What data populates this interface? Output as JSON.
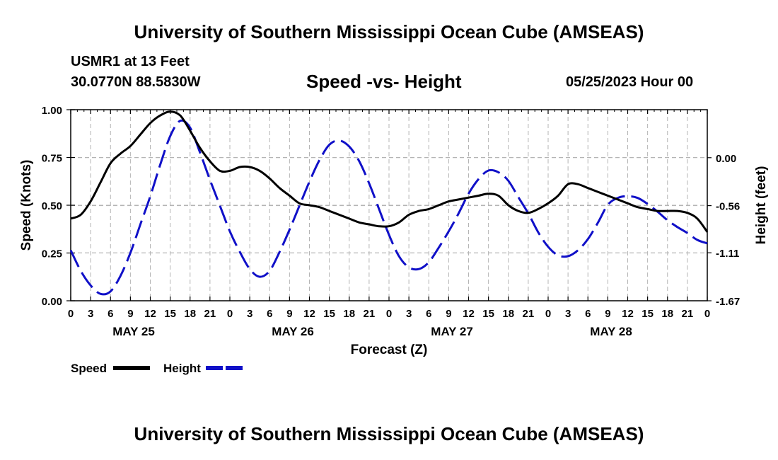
{
  "header": {
    "title": "University of Southern Mississippi Ocean Cube (AMSEAS)",
    "station": "USMR1 at 13 Feet",
    "coords": "30.0770N  88.5830W",
    "chart_title": "Speed -vs- Height",
    "datetime": "05/25/2023 Hour 00"
  },
  "footer": {
    "title": "University of Southern Mississippi Ocean Cube (AMSEAS)"
  },
  "colors": {
    "speed": "#000000",
    "height": "#1010c8",
    "grid": "#b4b4b4"
  },
  "chart_data": {
    "type": "line",
    "title": "Speed -vs- Height",
    "xlabel": "Forecast (Z)",
    "ylabel": "Speed (Knots)",
    "y2label": "Height (feet)",
    "xlim": [
      0,
      96
    ],
    "ylim": [
      0,
      1
    ],
    "y2lim": [
      -1.67,
      0.56
    ],
    "x_tick_values": [
      0,
      3,
      6,
      9,
      12,
      15,
      18,
      21,
      24,
      27,
      30,
      33,
      36,
      39,
      42,
      45,
      48,
      51,
      54,
      57,
      60,
      63,
      66,
      69,
      72,
      75,
      78,
      81,
      84,
      87,
      90,
      93,
      96
    ],
    "x_tick_labels": [
      "0",
      "3",
      "6",
      "9",
      "12",
      "15",
      "18",
      "21",
      "0",
      "3",
      "6",
      "9",
      "12",
      "15",
      "18",
      "21",
      "0",
      "3",
      "6",
      "9",
      "12",
      "15",
      "18",
      "21",
      "0",
      "3",
      "6",
      "9",
      "12",
      "15",
      "18",
      "21",
      "0"
    ],
    "day_labels": [
      {
        "label": "MAY 25",
        "x": 9.5
      },
      {
        "label": "MAY 26",
        "x": 33.5
      },
      {
        "label": "MAY 27",
        "x": 57.5
      },
      {
        "label": "MAY 28",
        "x": 81.5
      }
    ],
    "y_tick_values": [
      0,
      0.25,
      0.5,
      0.75,
      1.0
    ],
    "y_tick_labels": [
      "0.00",
      "0.25",
      "0.50",
      "0.75",
      "1.00"
    ],
    "y2_tick_values": [
      -1.67,
      -1.11,
      -0.56,
      0.0
    ],
    "y2_tick_labels": [
      "-1.67",
      "-1.11",
      "-0.56",
      "0.00"
    ],
    "legend": [
      {
        "label": "Speed",
        "style": "solid"
      },
      {
        "label": "Height",
        "style": "dashed"
      }
    ],
    "series": [
      {
        "name": "Speed",
        "axis": "left",
        "style": "solid",
        "x": [
          0,
          1.5,
          3,
          4.5,
          6,
          7.5,
          9,
          10.5,
          12,
          13.5,
          15,
          16.5,
          18,
          19.5,
          21,
          22.5,
          24,
          25.5,
          27,
          28.5,
          30,
          31.5,
          33,
          34.5,
          36,
          37.5,
          39,
          40.5,
          42,
          43.5,
          45,
          46.5,
          48,
          49.5,
          51,
          52.5,
          54,
          55.5,
          57,
          58.5,
          60,
          61.5,
          63,
          64.5,
          66,
          67.5,
          69,
          70.5,
          72,
          73.5,
          75,
          76.5,
          78,
          79.5,
          81,
          82.5,
          84,
          85.5,
          87,
          88.5,
          90,
          91.5,
          93,
          94.5,
          96
        ],
        "values": [
          0.43,
          0.45,
          0.52,
          0.62,
          0.72,
          0.77,
          0.81,
          0.87,
          0.93,
          0.97,
          0.99,
          0.97,
          0.89,
          0.8,
          0.73,
          0.68,
          0.68,
          0.7,
          0.7,
          0.68,
          0.64,
          0.59,
          0.55,
          0.51,
          0.5,
          0.49,
          0.47,
          0.45,
          0.43,
          0.41,
          0.4,
          0.39,
          0.39,
          0.41,
          0.45,
          0.47,
          0.48,
          0.5,
          0.52,
          0.53,
          0.54,
          0.55,
          0.56,
          0.55,
          0.5,
          0.47,
          0.46,
          0.48,
          0.51,
          0.55,
          0.61,
          0.61,
          0.59,
          0.57,
          0.55,
          0.53,
          0.51,
          0.49,
          0.48,
          0.47,
          0.47,
          0.47,
          0.46,
          0.43,
          0.36
        ]
      },
      {
        "name": "Height",
        "axis": "right",
        "style": "dashed",
        "x": [
          0,
          1.5,
          3,
          4.5,
          6,
          7.5,
          9,
          10.5,
          12,
          13.5,
          15,
          16.5,
          18,
          19.5,
          21,
          22.5,
          24,
          25.5,
          27,
          28.5,
          30,
          31.5,
          33,
          34.5,
          36,
          37.5,
          39,
          40.5,
          42,
          43.5,
          45,
          46.5,
          48,
          49.5,
          51,
          52.5,
          54,
          55.5,
          57,
          58.5,
          60,
          61.5,
          63,
          64.5,
          66,
          67.5,
          69,
          70.5,
          72,
          73.5,
          75,
          76.5,
          78,
          79.5,
          81,
          82.5,
          84,
          85.5,
          87,
          88.5,
          90,
          91.5,
          93,
          94.5,
          96
        ],
        "values": [
          -1.08,
          -1.32,
          -1.49,
          -1.59,
          -1.56,
          -1.38,
          -1.11,
          -0.78,
          -0.45,
          -0.08,
          0.25,
          0.43,
          0.35,
          0.06,
          -0.26,
          -0.56,
          -0.86,
          -1.1,
          -1.3,
          -1.39,
          -1.32,
          -1.1,
          -0.84,
          -0.56,
          -0.28,
          -0.03,
          0.15,
          0.2,
          0.13,
          -0.04,
          -0.3,
          -0.6,
          -0.9,
          -1.15,
          -1.28,
          -1.3,
          -1.22,
          -1.05,
          -0.86,
          -0.65,
          -0.42,
          -0.25,
          -0.15,
          -0.17,
          -0.27,
          -0.46,
          -0.65,
          -0.87,
          -1.04,
          -1.14,
          -1.15,
          -1.08,
          -0.95,
          -0.76,
          -0.55,
          -0.47,
          -0.45,
          -0.47,
          -0.54,
          -0.63,
          -0.73,
          -0.81,
          -0.88,
          -0.96,
          -1.0
        ]
      }
    ]
  }
}
